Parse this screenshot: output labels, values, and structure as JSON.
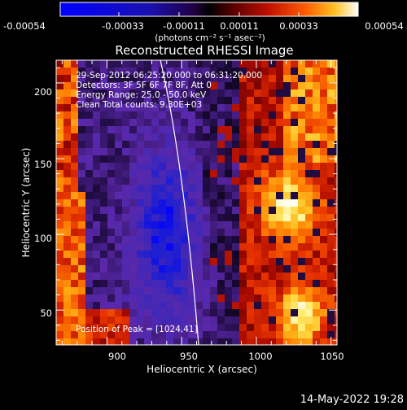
{
  "colorbar": {
    "ticks": [
      "-0.00054",
      "-0.00033",
      "-0.00011",
      "0.00011",
      "0.00033",
      "0.00054"
    ],
    "unit_label": "(photons cm⁻² s⁻¹ asec⁻²)"
  },
  "title": "Reconstructed RHESSI Image",
  "info": {
    "time_range": "29-Sep-2012 06:25:20.000 to 06:31:20.000",
    "detectors": "Detectors: 3F 5F 6F 7F 8F, Att 0",
    "energy_range": "Energy Range: 25.0 - 50.0 keV",
    "clean": "Clean    Total counts: 9.30E+03",
    "peak": "Position of Peak = [1024,41]"
  },
  "x_axis": {
    "label": "Heliocentric X (arcsec)",
    "range": [
      866,
      1054
    ],
    "ticks": [
      "900",
      "950",
      "1000",
      "1050"
    ]
  },
  "y_axis": {
    "label": "Heliocentric Y (arcsec)",
    "range": [
      27,
      215
    ],
    "ticks": [
      "50",
      "100",
      "150",
      "200"
    ]
  },
  "footer": {
    "date": "14-May-2022 19:28"
  },
  "colors": {
    "background": "#000000",
    "text": "#ffffff",
    "colormap": [
      "#0000ff",
      "#1010c0",
      "#2a0a6a",
      "#000000",
      "#5a0000",
      "#c01000",
      "#ff5000",
      "#ffa000",
      "#ffe040",
      "#ffffff"
    ]
  }
}
